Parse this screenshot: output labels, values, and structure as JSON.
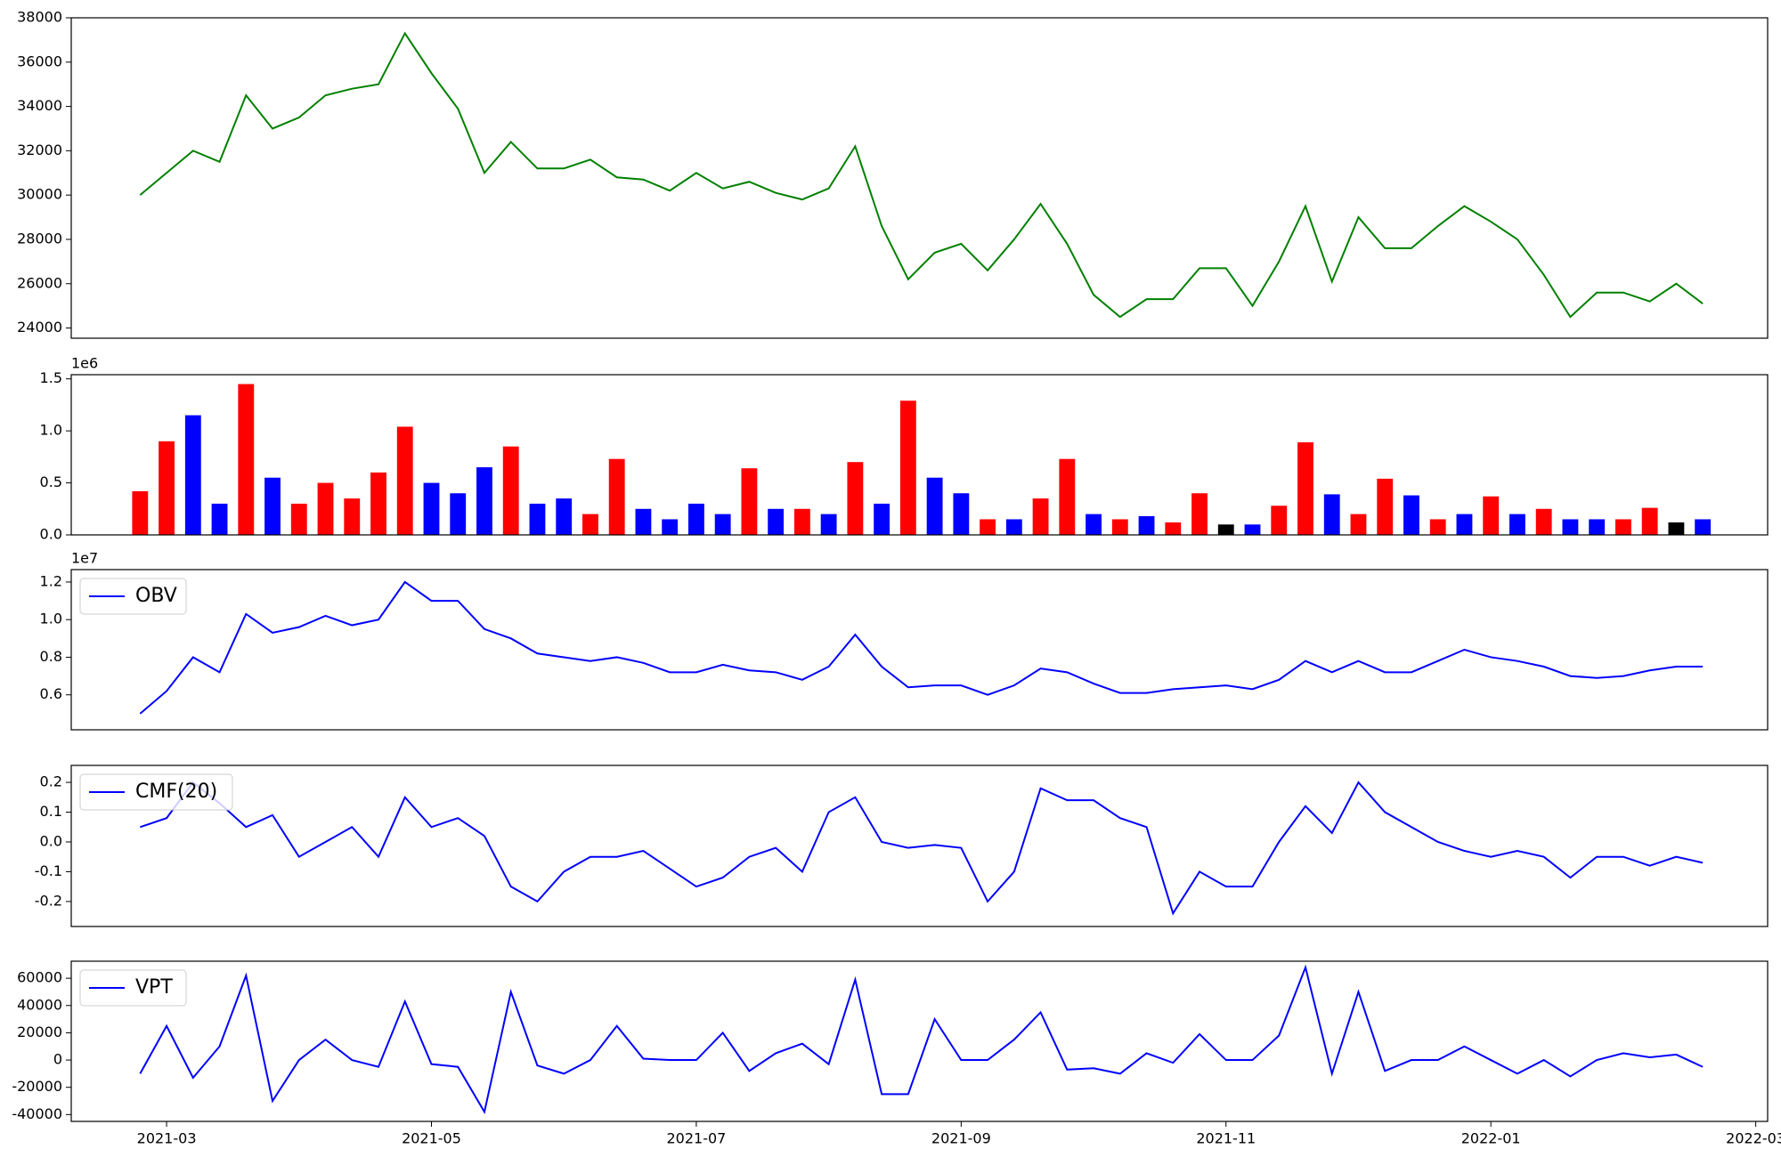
{
  "chart_data": [
    {
      "type": "line",
      "x": [
        -0.2,
        0,
        0.2,
        0.4,
        0.6,
        0.8,
        1,
        1.2,
        1.4,
        1.6,
        1.8,
        2,
        2.2,
        2.4,
        2.6,
        2.8,
        3,
        3.2,
        3.4,
        3.6,
        3.8,
        4,
        4.2,
        4.4,
        4.6,
        4.8,
        5,
        5.2,
        5.4,
        5.6,
        5.8,
        6,
        6.2,
        6.4,
        6.6,
        6.8,
        7,
        7.2,
        7.4,
        7.6,
        7.8,
        8,
        8.2,
        8.4,
        8.6,
        8.8,
        9,
        9.2,
        9.4,
        9.6,
        9.8,
        10,
        10.2,
        10.4,
        10.6,
        10.8,
        11,
        11.2,
        11.4,
        11.6
      ],
      "xlim": [
        -0.72,
        12.09
      ],
      "ylim": [
        23540,
        38000
      ],
      "yticks": [
        24000,
        26000,
        28000,
        30000,
        32000,
        34000,
        36000,
        38000
      ],
      "series": [
        {
          "color": "green",
          "values": [
            30000,
            31000,
            32000,
            31500,
            34500,
            33000,
            33500,
            34500,
            34800,
            35000,
            37300,
            35500,
            33900,
            31000,
            32400,
            31200,
            31200,
            31600,
            30800,
            30700,
            30200,
            31000,
            30300,
            30600,
            30100,
            29800,
            30300,
            32200,
            28600,
            26200,
            27400,
            27800,
            26600,
            28000,
            29600,
            27800,
            25500,
            24500,
            25300,
            25300,
            26700,
            26700,
            25000,
            27000,
            29500,
            26100,
            29000,
            27600,
            27600,
            28600,
            29500,
            28800,
            28000,
            26400,
            24500,
            25600,
            25600,
            25200,
            26000,
            25100
          ]
        }
      ]
    },
    {
      "type": "bar",
      "x": [
        -0.2,
        0,
        0.2,
        0.4,
        0.6,
        0.8,
        1,
        1.2,
        1.4,
        1.6,
        1.8,
        2,
        2.2,
        2.4,
        2.6,
        2.8,
        3,
        3.2,
        3.4,
        3.6,
        3.8,
        4,
        4.2,
        4.4,
        4.6,
        4.8,
        5,
        5.2,
        5.4,
        5.6,
        5.8,
        6,
        6.2,
        6.4,
        6.6,
        6.8,
        7,
        7.2,
        7.4,
        7.6,
        7.8,
        8,
        8.2,
        8.4,
        8.6,
        8.8,
        9,
        9.2,
        9.4,
        9.6,
        9.8,
        10,
        10.2,
        10.4,
        10.6,
        10.8,
        11,
        11.2,
        11.4,
        11.6
      ],
      "xlim": [
        -0.72,
        12.09
      ],
      "ylim": [
        0,
        1.54
      ],
      "yticks": [
        {
          "value": 0,
          "label": "0.0"
        },
        0.5,
        {
          "value": 1,
          "label": "1.0"
        },
        1.5
      ],
      "offset_label": "1e6",
      "series": [
        {
          "values": [
            0.42,
            0.9,
            1.15,
            0.3,
            1.45,
            0.55,
            0.3,
            0.5,
            0.35,
            0.6,
            1.04,
            0.5,
            0.4,
            0.65,
            0.85,
            0.3,
            0.35,
            0.2,
            0.73,
            0.25,
            0.15,
            0.3,
            0.2,
            0.64,
            0.25,
            0.25,
            0.2,
            0.7,
            0.3,
            1.29,
            0.55,
            0.4,
            0.15,
            0.15,
            0.35,
            0.73,
            0.2,
            0.15,
            0.18,
            0.12,
            0.4,
            0.1,
            0.1,
            0.28,
            0.89,
            0.39,
            0.2,
            0.54,
            0.38,
            0.15,
            0.2,
            0.37,
            0.2,
            0.25,
            0.15,
            0.15,
            0.15,
            0.26,
            0.12,
            0.15
          ],
          "colors": [
            "red",
            "red",
            "blue",
            "blue",
            "red",
            "blue",
            "red",
            "red",
            "red",
            "red",
            "red",
            "blue",
            "blue",
            "blue",
            "red",
            "blue",
            "blue",
            "red",
            "red",
            "blue",
            "blue",
            "blue",
            "blue",
            "red",
            "blue",
            "red",
            "blue",
            "red",
            "blue",
            "red",
            "blue",
            "blue",
            "red",
            "blue",
            "red",
            "red",
            "blue",
            "red",
            "blue",
            "red",
            "red",
            "black",
            "blue",
            "red",
            "red",
            "blue",
            "red",
            "red",
            "blue",
            "red",
            "blue",
            "red",
            "blue",
            "red",
            "blue",
            "blue",
            "red",
            "red",
            "black",
            "blue"
          ]
        }
      ]
    },
    {
      "type": "line",
      "x": [
        -0.2,
        0,
        0.2,
        0.4,
        0.6,
        0.8,
        1,
        1.2,
        1.4,
        1.6,
        1.8,
        2,
        2.2,
        2.4,
        2.6,
        2.8,
        3,
        3.2,
        3.4,
        3.6,
        3.8,
        4,
        4.2,
        4.4,
        4.6,
        4.8,
        5,
        5.2,
        5.4,
        5.6,
        5.8,
        6,
        6.2,
        6.4,
        6.6,
        6.8,
        7,
        7.2,
        7.4,
        7.6,
        7.8,
        8,
        8.2,
        8.4,
        8.6,
        8.8,
        9,
        9.2,
        9.4,
        9.6,
        9.8,
        10,
        10.2,
        10.4,
        10.6,
        10.8,
        11,
        11.2,
        11.4,
        11.6
      ],
      "xlim": [
        -0.72,
        12.09
      ],
      "ylim": [
        0.414,
        1.266
      ],
      "yticks": [
        0.6,
        0.8,
        {
          "value": 1,
          "label": "1.0"
        },
        1.2
      ],
      "offset_label": "1e7",
      "legend": "upper left",
      "series": [
        {
          "name": "OBV",
          "color": "blue",
          "values": [
            0.5,
            0.62,
            0.8,
            0.72,
            1.03,
            0.93,
            0.96,
            1.02,
            0.97,
            1.0,
            1.2,
            1.1,
            1.1,
            0.95,
            0.9,
            0.82,
            0.8,
            0.78,
            0.8,
            0.77,
            0.72,
            0.72,
            0.76,
            0.73,
            0.72,
            0.68,
            0.75,
            0.92,
            0.75,
            0.64,
            0.65,
            0.65,
            0.6,
            0.65,
            0.74,
            0.72,
            0.66,
            0.61,
            0.61,
            0.63,
            0.64,
            0.65,
            0.63,
            0.68,
            0.78,
            0.72,
            0.78,
            0.72,
            0.72,
            0.78,
            0.84,
            0.8,
            0.78,
            0.75,
            0.7,
            0.69,
            0.7,
            0.73,
            0.75,
            0.75
          ]
        }
      ]
    },
    {
      "type": "line",
      "x": [
        -0.2,
        0,
        0.2,
        0.4,
        0.6,
        0.8,
        1,
        1.2,
        1.4,
        1.6,
        1.8,
        2,
        2.2,
        2.4,
        2.6,
        2.8,
        3,
        3.2,
        3.4,
        3.6,
        3.8,
        4,
        4.2,
        4.4,
        4.6,
        4.8,
        5,
        5.2,
        5.4,
        5.6,
        5.8,
        6,
        6.2,
        6.4,
        6.6,
        6.8,
        7,
        7.2,
        7.4,
        7.6,
        7.8,
        8,
        8.2,
        8.4,
        8.6,
        8.8,
        9,
        9.2,
        9.4,
        9.6,
        9.8,
        10,
        10.2,
        10.4,
        10.6,
        10.8,
        11,
        11.2,
        11.4,
        11.6
      ],
      "xlim": [
        -0.72,
        12.09
      ],
      "ylim": [
        -0.284,
        0.257
      ],
      "yticks": [
        -0.2,
        -0.1,
        {
          "value": 0,
          "label": "0.0"
        },
        0.1,
        0.2
      ],
      "legend": "upper left",
      "series": [
        {
          "name": "CMF(20)",
          "color": "blue",
          "values": [
            0.05,
            0.08,
            0.2,
            0.13,
            0.05,
            0.09,
            -0.05,
            0,
            0.05,
            -0.05,
            0.15,
            0.05,
            0.08,
            0.02,
            -0.15,
            -0.2,
            -0.1,
            -0.05,
            -0.05,
            -0.03,
            -0.09,
            -0.15,
            -0.12,
            -0.05,
            -0.02,
            -0.1,
            0.1,
            0.15,
            0,
            -0.02,
            -0.01,
            -0.02,
            -0.2,
            -0.1,
            0.18,
            0.14,
            0.14,
            0.08,
            0.05,
            -0.24,
            -0.1,
            -0.15,
            -0.15,
            0,
            0.12,
            0.03,
            0.2,
            0.1,
            0.05,
            0,
            -0.03,
            -0.05,
            -0.03,
            -0.05,
            -0.12,
            -0.05,
            -0.05,
            -0.08,
            -0.05,
            -0.07
          ]
        }
      ]
    },
    {
      "type": "line",
      "x": [
        -0.2,
        0,
        0.2,
        0.4,
        0.6,
        0.8,
        1,
        1.2,
        1.4,
        1.6,
        1.8,
        2,
        2.2,
        2.4,
        2.6,
        2.8,
        3,
        3.2,
        3.4,
        3.6,
        3.8,
        4,
        4.2,
        4.4,
        4.6,
        4.8,
        5,
        5.2,
        5.4,
        5.6,
        5.8,
        6,
        6.2,
        6.4,
        6.6,
        6.8,
        7,
        7.2,
        7.4,
        7.6,
        7.8,
        8,
        8.2,
        8.4,
        8.6,
        8.8,
        9,
        9.2,
        9.4,
        9.6,
        9.8,
        10,
        10.2,
        10.4,
        10.6,
        10.8,
        11,
        11.2,
        11.4,
        11.6
      ],
      "xlim": [
        -0.72,
        12.09
      ],
      "xticks": [
        {
          "value": 0,
          "label": "2021-03"
        },
        {
          "value": 2,
          "label": "2021-05"
        },
        {
          "value": 4,
          "label": "2021-07"
        },
        {
          "value": 6,
          "label": "2021-09"
        },
        {
          "value": 8,
          "label": "2021-11"
        },
        {
          "value": 10,
          "label": "2022-01"
        },
        {
          "value": 12,
          "label": "2022-03"
        }
      ],
      "ylim": [
        -45000,
        72500
      ],
      "yticks": [
        -40000,
        -20000,
        0,
        20000,
        40000,
        60000
      ],
      "legend": "upper left",
      "series": [
        {
          "name": "VPT",
          "color": "blue",
          "values": [
            -10000,
            25000,
            -13000,
            10000,
            62000,
            -30000,
            0,
            15000,
            0,
            -5000,
            43000,
            -3000,
            -5000,
            -38000,
            50000,
            -4000,
            -10000,
            0,
            25000,
            1000,
            0,
            0,
            20000,
            -8000,
            5000,
            12000,
            -3000,
            59000,
            -25000,
            -25000,
            30000,
            0,
            0,
            15000,
            35000,
            -7000,
            -6000,
            -10000,
            5000,
            -2000,
            19000,
            0,
            0,
            18000,
            68000,
            -10000,
            50000,
            -8000,
            0,
            0,
            10000,
            0,
            -10000,
            0,
            -12000,
            0,
            5000,
            2000,
            4000,
            -5000
          ]
        }
      ]
    }
  ]
}
